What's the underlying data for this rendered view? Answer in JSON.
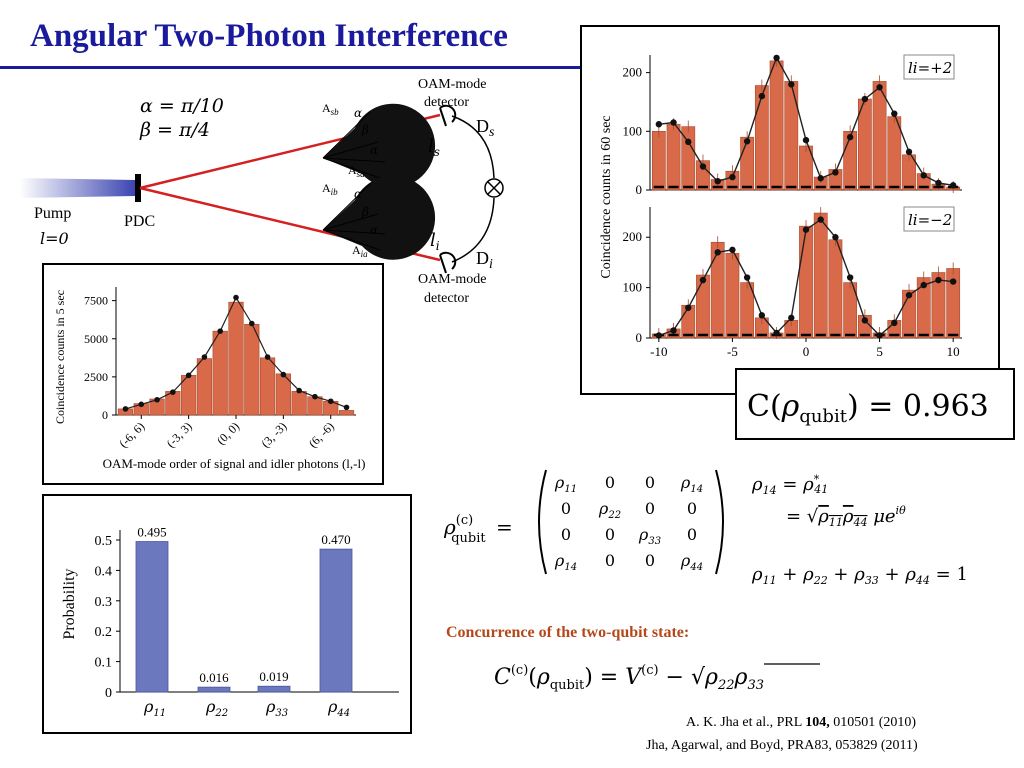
{
  "title": "Angular Two-Photon Interference",
  "setup": {
    "alpha_eq": "α = π/10",
    "beta_eq": "β = π/4",
    "pump": "Pump",
    "l0": "l=0",
    "pdc": "PDC",
    "a_sb": "Asb",
    "a_sa": "Asa",
    "a_ib": "Aib",
    "a_ia": "Aia",
    "alpha": "α",
    "beta": "β",
    "det_top": [
      "OAM-mode",
      "detector"
    ],
    "det_bottom": [
      "OAM-mode",
      "detector"
    ],
    "ds": "Ds",
    "di": "Di",
    "ls": "ls",
    "li": "li"
  },
  "concurrence_value": "C(ρqubit) = 0.963",
  "rho_lhs": "ρ(c)qubit =",
  "matrix": [
    [
      "ρ11",
      "0",
      "0",
      "ρ14"
    ],
    [
      "0",
      "ρ22",
      "0",
      "0"
    ],
    [
      "0",
      "0",
      "ρ33",
      "0"
    ],
    [
      "ρ14",
      "0",
      "0",
      "ρ44"
    ]
  ],
  "eq_rho14_a": "ρ14 = ρ*41",
  "eq_rho14_b": "= √(ρ11ρ44) μe^iθ",
  "eq_trace": "ρ11 + ρ22 + ρ33 + ρ44 = 1",
  "concurrence_title": "Concurrence of the two-qubit state:",
  "concurrence_formula": "C(c)(ρqubit) = V(c) − √(ρ22ρ33)",
  "refs": {
    "r1_a": "A. K. Jha et al., PRL ",
    "r1_b": "104,",
    "r1_c": " 010501 (2010)",
    "r2": "Jha, Agarwal, and Boyd, PRA83, 053829 (2011)"
  },
  "colors": {
    "title": "#1a1a9c",
    "bar_orange": "#d86a4a",
    "bar_blue": "#6b78be",
    "conc_title": "#b5481a"
  },
  "chart_data": [
    {
      "type": "bar",
      "title": "",
      "panel_label": "li=+2",
      "xlabel": "",
      "ylabel": "Coincidence counts in 60 sec",
      "x": [
        -10,
        -9,
        -8,
        -7,
        -6,
        -5,
        -4,
        -3,
        -2,
        -1,
        0,
        1,
        2,
        3,
        4,
        5,
        6,
        7,
        8,
        9,
        10
      ],
      "values": [
        100,
        112,
        108,
        50,
        18,
        32,
        90,
        178,
        220,
        185,
        75,
        22,
        35,
        100,
        155,
        185,
        125,
        60,
        28,
        10,
        5
      ],
      "fit_points": [
        112,
        115,
        82,
        40,
        15,
        22,
        83,
        160,
        225,
        180,
        85,
        20,
        30,
        90,
        155,
        175,
        130,
        65,
        25,
        12,
        8
      ],
      "ylim": [
        0,
        230
      ],
      "yticks": [
        0,
        100,
        200
      ],
      "xticks": [
        -10,
        -5,
        0,
        5,
        10
      ]
    },
    {
      "type": "bar",
      "title": "",
      "panel_label": "li=−2",
      "xlabel": "",
      "ylabel": "Coincidence counts in 60 sec",
      "x": [
        -10,
        -9,
        -8,
        -7,
        -6,
        -5,
        -4,
        -3,
        -2,
        -1,
        0,
        1,
        2,
        3,
        4,
        5,
        6,
        7,
        8,
        9,
        10
      ],
      "values": [
        8,
        18,
        65,
        125,
        190,
        168,
        110,
        40,
        10,
        35,
        222,
        248,
        195,
        110,
        45,
        10,
        35,
        95,
        120,
        130,
        138
      ],
      "fit_points": [
        5,
        15,
        60,
        115,
        170,
        175,
        120,
        45,
        10,
        40,
        215,
        235,
        200,
        120,
        35,
        5,
        30,
        85,
        105,
        115,
        112
      ],
      "ylim": [
        0,
        260
      ],
      "yticks": [
        0,
        100,
        200
      ],
      "xticks": [
        -10,
        -5,
        0,
        5,
        10
      ]
    },
    {
      "type": "bar",
      "title": "",
      "xlabel": "OAM-mode order of signal and idler photons (l,-l)",
      "ylabel": "Coincidence counts  in 5 sec",
      "x": [
        -7,
        -6,
        -5,
        -4,
        -3,
        -2,
        -1,
        0,
        1,
        2,
        3,
        4,
        5,
        6,
        7
      ],
      "values": [
        400,
        750,
        1050,
        1550,
        2600,
        3700,
        5500,
        7400,
        5950,
        3750,
        2700,
        1550,
        1200,
        900,
        300
      ],
      "fit_points": [
        400,
        700,
        1000,
        1500,
        2600,
        3800,
        5500,
        7700,
        6000,
        3800,
        2650,
        1600,
        1200,
        900,
        500
      ],
      "tick_labels": [
        "(-6, 6)",
        "(-3, 3)",
        "(0, 0)",
        "(3, -3)",
        "(6, -6)"
      ],
      "tick_x": [
        -6,
        -3,
        0,
        3,
        6
      ],
      "ylim": [
        0,
        8000
      ],
      "yticks": [
        0,
        2500,
        5000,
        7500
      ]
    },
    {
      "type": "bar",
      "title": "",
      "xlabel": "",
      "ylabel": "Probability",
      "categories": [
        "ρ11",
        "ρ22",
        "ρ33",
        "ρ44"
      ],
      "values": [
        0.495,
        0.016,
        0.019,
        0.47
      ],
      "data_labels": [
        "0.495",
        "0.016",
        "0.019",
        "0.470"
      ],
      "ylim": [
        0,
        0.5
      ],
      "yticks": [
        "0",
        "0.1",
        "0.2",
        "0.3",
        "0.4",
        "0.5"
      ]
    }
  ]
}
